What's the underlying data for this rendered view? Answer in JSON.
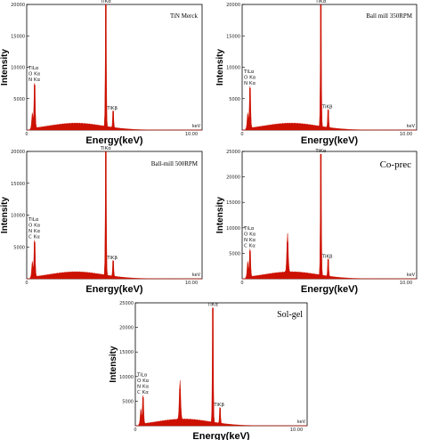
{
  "chart_data": [
    {
      "type": "area",
      "title": "TiN Merck",
      "xlabel": "Energy(keV)",
      "ylabel": "Intensity",
      "xlim": [
        0,
        10
      ],
      "ylim": [
        0,
        20000
      ],
      "x_tick_labels": [
        "0",
        "10.00"
      ],
      "x_unit": "keV",
      "y_ticks": [
        5000,
        10000,
        15000,
        20000
      ],
      "color": "#cc1100",
      "peak_labels": [
        {
          "text": "TiLα",
          "x": 0.45
        },
        {
          "text": "O Kα",
          "x": 0.52
        },
        {
          "text": "N Kα",
          "x": 0.39
        },
        {
          "text": "TiKα",
          "x": 4.51
        },
        {
          "text": "TiKβ",
          "x": 4.93
        }
      ],
      "peaks": [
        {
          "x": 0.45,
          "y": 7200
        },
        {
          "x": 4.51,
          "y": 20000
        },
        {
          "x": 4.93,
          "y": 3000
        }
      ]
    },
    {
      "type": "area",
      "title": "Ball mill 350RPM",
      "xlabel": "Energy(keV)",
      "ylabel": "Intensity",
      "xlim": [
        0,
        10
      ],
      "ylim": [
        0,
        20000
      ],
      "x_tick_labels": [
        "0",
        "10.00"
      ],
      "x_unit": "keV",
      "y_ticks": [
        5000,
        10000,
        15000,
        20000
      ],
      "color": "#cc1100",
      "peak_labels": [
        {
          "text": "TiLα",
          "x": 0.45
        },
        {
          "text": "O Kα",
          "x": 0.52
        },
        {
          "text": "N Kα",
          "x": 0.39
        },
        {
          "text": "TiKα",
          "x": 4.51
        },
        {
          "text": "TiKβ",
          "x": 4.93
        }
      ],
      "peaks": [
        {
          "x": 0.45,
          "y": 6700
        },
        {
          "x": 4.51,
          "y": 20000
        },
        {
          "x": 4.93,
          "y": 3200
        }
      ]
    },
    {
      "type": "area",
      "title": "Ball-mill 500RPM",
      "xlabel": "Energy(keV)",
      "ylabel": "Intensity",
      "xlim": [
        0,
        10
      ],
      "ylim": [
        0,
        20000
      ],
      "x_tick_labels": [
        "0",
        "10.00"
      ],
      "x_unit": "keV",
      "y_ticks": [
        5000,
        10000,
        15000,
        20000
      ],
      "color": "#cc1100",
      "peak_labels": [
        {
          "text": "TiLα",
          "x": 0.45
        },
        {
          "text": "O Kα",
          "x": 0.52
        },
        {
          "text": "N Kα",
          "x": 0.39
        },
        {
          "text": "C Kα",
          "x": 0.28
        },
        {
          "text": "TiKα",
          "x": 4.51
        },
        {
          "text": "TiKβ",
          "x": 4.93
        }
      ],
      "peaks": [
        {
          "x": 0.45,
          "y": 5800
        },
        {
          "x": 4.51,
          "y": 20000
        },
        {
          "x": 4.93,
          "y": 2800
        }
      ]
    },
    {
      "type": "area",
      "title": "Co-prec",
      "xlabel": "Energy(keV)",
      "ylabel": "Intensity",
      "xlim": [
        0,
        10
      ],
      "ylim": [
        0,
        25000
      ],
      "x_tick_labels": [
        "0",
        "10.00"
      ],
      "x_unit": "keV",
      "y_ticks": [
        5000,
        10000,
        15000,
        20000,
        25000
      ],
      "color": "#cc1100",
      "peak_labels": [
        {
          "text": "TiLα",
          "x": 0.45
        },
        {
          "text": "O Kα",
          "x": 0.52
        },
        {
          "text": "N Kα",
          "x": 0.39
        },
        {
          "text": "C Kα",
          "x": 0.28
        },
        {
          "text": "TiKα",
          "x": 4.51
        },
        {
          "text": "TiKβ",
          "x": 4.93
        }
      ],
      "peaks": [
        {
          "x": 0.45,
          "y": 5500
        },
        {
          "x": 2.6,
          "y": 7200
        },
        {
          "x": 4.51,
          "y": 24500
        },
        {
          "x": 4.93,
          "y": 3800
        }
      ]
    },
    {
      "type": "area",
      "title": "Sol-gel",
      "xlabel": "Energy(keV)",
      "ylabel": "Intensity",
      "xlim": [
        0,
        10
      ],
      "ylim": [
        0,
        25000
      ],
      "x_tick_labels": [
        "0",
        "10.00"
      ],
      "x_unit": "keV",
      "y_ticks": [
        5000,
        10000,
        15000,
        20000,
        25000
      ],
      "color": "#cc1100",
      "peak_labels": [
        {
          "text": "TiLα",
          "x": 0.45
        },
        {
          "text": "O Kα",
          "x": 0.52
        },
        {
          "text": "N Kα",
          "x": 0.39
        },
        {
          "text": "C Kα",
          "x": 0.28
        },
        {
          "text": "TiKα",
          "x": 4.51
        },
        {
          "text": "TiKβ",
          "x": 4.93
        }
      ],
      "peaks": [
        {
          "x": 0.45,
          "y": 5800
        },
        {
          "x": 2.6,
          "y": 7500
        },
        {
          "x": 4.51,
          "y": 24000
        },
        {
          "x": 4.93,
          "y": 3600
        }
      ]
    }
  ]
}
